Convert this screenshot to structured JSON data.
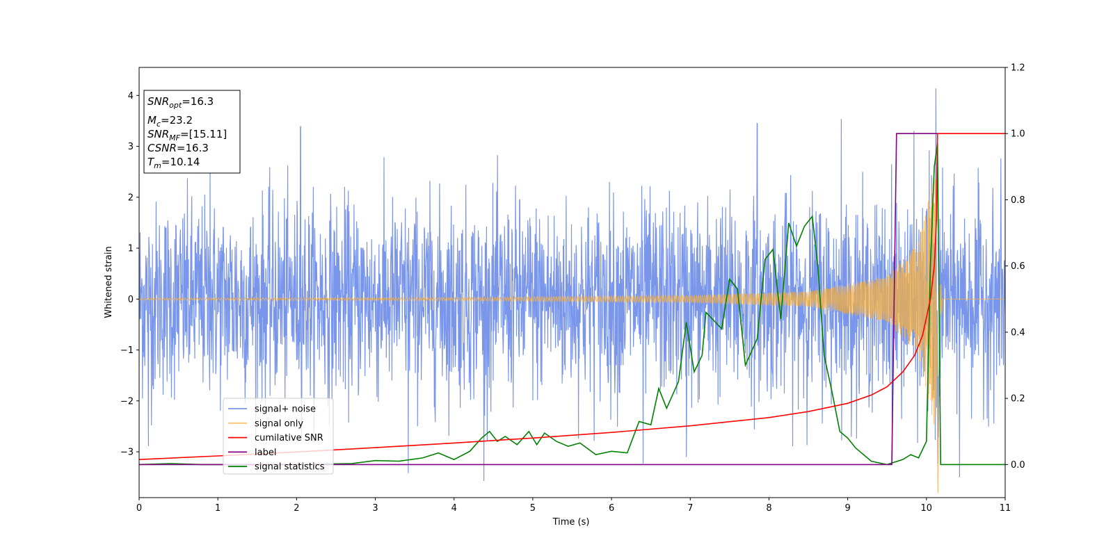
{
  "chart_data": {
    "type": "line",
    "xlabel": "Time (s)",
    "ylabel": "Whitened strain",
    "xlim": [
      0,
      11
    ],
    "ylim": [
      -3.9,
      4.55
    ],
    "y2lim": [
      -0.1,
      1.2
    ],
    "xticks": [
      "0",
      "1",
      "2",
      "3",
      "4",
      "5",
      "6",
      "7",
      "8",
      "9",
      "10",
      "11"
    ],
    "yticks": [
      "−3",
      "−2",
      "−1",
      "0",
      "1",
      "2",
      "3",
      "4"
    ],
    "y2ticks": [
      "0.0",
      "0.2",
      "0.4",
      "0.6",
      "0.8",
      "1.0",
      "1.2"
    ],
    "legend_position": "lower-left",
    "annotation": {
      "snr_opt": {
        "main": "SNR",
        "sub": "opt",
        "value": "=16.3"
      },
      "mc": {
        "main": "M",
        "sub": "c",
        "value": "=23.2"
      },
      "snr_mf": {
        "main": "SNR",
        "sub": "MF",
        "value": "=[15.11]"
      },
      "csnr": {
        "main": "CSNR",
        "value": "=16.3"
      },
      "tm": {
        "main": "T",
        "sub": "m",
        "value": "=10.14"
      }
    },
    "series": [
      {
        "name": "signal+ noise",
        "axis": "left",
        "color": "#4169e1",
        "note": "whitened noise, approx. N(0,1) amplitude ±2.5 with spikes to ±3.4; peak 4.17 at t≈10.13",
        "noise_sigma": 1.0,
        "spike_points": [
          [
            0.12,
            -2.9
          ],
          [
            0.9,
            2.6
          ],
          [
            2.05,
            3.38
          ],
          [
            3.42,
            -3.4
          ],
          [
            4.38,
            -3.55
          ],
          [
            6.4,
            -3.2
          ],
          [
            6.95,
            -3.15
          ],
          [
            7.85,
            3.38
          ],
          [
            8.92,
            3.38
          ],
          [
            10.12,
            4.17
          ],
          [
            10.42,
            -3.5
          ]
        ]
      },
      {
        "name": "signal only",
        "axis": "left",
        "color": "#f5b041",
        "note": "chirp with growing amplitude, merger at t≈10.14",
        "amplitude_points": [
          [
            0,
            0.02
          ],
          [
            4,
            0.03
          ],
          [
            7,
            0.07
          ],
          [
            8.5,
            0.15
          ],
          [
            9.5,
            0.45
          ],
          [
            9.9,
            1.1
          ],
          [
            10.1,
            2.5
          ],
          [
            10.14,
            -3.6
          ],
          [
            10.2,
            0.0
          ],
          [
            11,
            0.0
          ]
        ]
      },
      {
        "name": "cumilative SNR",
        "axis": "right",
        "color": "#ff0000",
        "points": [
          [
            0,
            0.015
          ],
          [
            1,
            0.026
          ],
          [
            2,
            0.038
          ],
          [
            3,
            0.051
          ],
          [
            4,
            0.065
          ],
          [
            5,
            0.08
          ],
          [
            6,
            0.097
          ],
          [
            7,
            0.117
          ],
          [
            8,
            0.142
          ],
          [
            8.5,
            0.16
          ],
          [
            9,
            0.185
          ],
          [
            9.3,
            0.21
          ],
          [
            9.5,
            0.235
          ],
          [
            9.7,
            0.28
          ],
          [
            9.85,
            0.33
          ],
          [
            9.95,
            0.39
          ],
          [
            10.05,
            0.5
          ],
          [
            10.1,
            0.6
          ],
          [
            10.13,
            0.75
          ],
          [
            10.14,
            1.0
          ],
          [
            11,
            1.0
          ]
        ]
      },
      {
        "name": "label",
        "axis": "right",
        "color": "#800080",
        "points": [
          [
            0,
            0.0
          ],
          [
            9.56,
            0.0
          ],
          [
            9.62,
            1.0
          ],
          [
            10.14,
            1.0
          ]
        ]
      },
      {
        "name": "signal statistics",
        "axis": "right",
        "color": "#008000",
        "points": [
          [
            0,
            0.0
          ],
          [
            0.4,
            0.003
          ],
          [
            0.8,
            0.0
          ],
          [
            2.0,
            0.0
          ],
          [
            2.7,
            0.003
          ],
          [
            3.0,
            0.012
          ],
          [
            3.3,
            0.01
          ],
          [
            3.6,
            0.02
          ],
          [
            3.8,
            0.035
          ],
          [
            4.0,
            0.015
          ],
          [
            4.2,
            0.04
          ],
          [
            4.35,
            0.08
          ],
          [
            4.45,
            0.1
          ],
          [
            4.55,
            0.07
          ],
          [
            4.65,
            0.085
          ],
          [
            4.8,
            0.06
          ],
          [
            4.95,
            0.1
          ],
          [
            5.05,
            0.06
          ],
          [
            5.15,
            0.095
          ],
          [
            5.3,
            0.07
          ],
          [
            5.45,
            0.055
          ],
          [
            5.6,
            0.065
          ],
          [
            5.8,
            0.03
          ],
          [
            6.0,
            0.04
          ],
          [
            6.2,
            0.035
          ],
          [
            6.35,
            0.13
          ],
          [
            6.5,
            0.12
          ],
          [
            6.6,
            0.23
          ],
          [
            6.7,
            0.17
          ],
          [
            6.85,
            0.25
          ],
          [
            6.95,
            0.43
          ],
          [
            7.05,
            0.28
          ],
          [
            7.15,
            0.33
          ],
          [
            7.2,
            0.46
          ],
          [
            7.4,
            0.41
          ],
          [
            7.5,
            0.56
          ],
          [
            7.6,
            0.53
          ],
          [
            7.7,
            0.3
          ],
          [
            7.85,
            0.38
          ],
          [
            7.95,
            0.62
          ],
          [
            8.05,
            0.65
          ],
          [
            8.15,
            0.44
          ],
          [
            8.25,
            0.73
          ],
          [
            8.35,
            0.66
          ],
          [
            8.45,
            0.72
          ],
          [
            8.55,
            0.75
          ],
          [
            8.62,
            0.6
          ],
          [
            8.7,
            0.33
          ],
          [
            8.8,
            0.22
          ],
          [
            8.9,
            0.1
          ],
          [
            9.0,
            0.08
          ],
          [
            9.1,
            0.05
          ],
          [
            9.3,
            0.01
          ],
          [
            9.5,
            0.0
          ],
          [
            9.7,
            0.015
          ],
          [
            9.8,
            0.03
          ],
          [
            9.9,
            0.02
          ],
          [
            10.0,
            0.07
          ],
          [
            10.05,
            0.6
          ],
          [
            10.1,
            0.9
          ],
          [
            10.14,
            0.97
          ],
          [
            10.18,
            0.0
          ],
          [
            11,
            0.0
          ]
        ]
      }
    ]
  }
}
